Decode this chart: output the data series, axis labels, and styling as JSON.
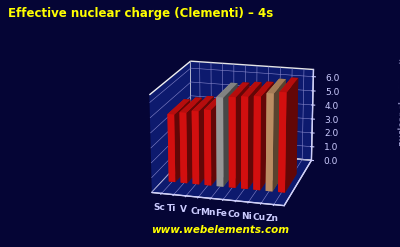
{
  "title": "Effective nuclear charge (Clementi) – 4s",
  "ylabel": "nuclear charge units",
  "watermark": "www.webelements.com",
  "elements": [
    "Sc",
    "Ti",
    "V",
    "Cr",
    "Mn",
    "Fe",
    "Co",
    "Ni",
    "Cu",
    "Zn"
  ],
  "values": [
    4.632,
    4.817,
    4.981,
    5.133,
    6.015,
    6.102,
    6.197,
    6.273,
    6.525,
    6.663
  ],
  "bar_colors": [
    "#ee1111",
    "#ee1111",
    "#ee1111",
    "#ee1111",
    "#aaaaaa",
    "#ee1111",
    "#ee1111",
    "#ee1111",
    "#d4a070",
    "#ee1111"
  ],
  "background_color": "#050535",
  "chart_bg_left": "#10106a",
  "chart_bg_right": "#0a0a55",
  "floor_color": "#1a3a9a",
  "title_color": "#ffff00",
  "axis_color": "#ccccff",
  "watermark_color": "#ffff00",
  "ylim": [
    0,
    6.5
  ],
  "yticks": [
    0.0,
    1.0,
    2.0,
    3.0,
    4.0,
    5.0,
    6.0
  ]
}
